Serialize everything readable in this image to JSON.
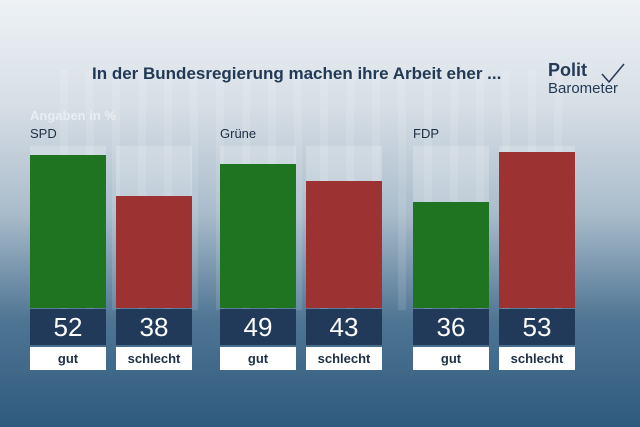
{
  "title": "In der Bundesregierung machen ihre Arbeit eher ...",
  "logo": {
    "line1": "Polit",
    "line2": "Barometer"
  },
  "note": "Angaben in %",
  "colors": {
    "gut": "#1e7420",
    "schlecht": "#9d3232",
    "value_box": "#223a5a",
    "text": "#223a56"
  },
  "chart_data": [
    {
      "type": "bar",
      "title": "SPD",
      "categories": [
        "gut",
        "schlecht"
      ],
      "values": [
        52,
        38
      ],
      "ylim": [
        0,
        55
      ]
    },
    {
      "type": "bar",
      "title": "Grüne",
      "categories": [
        "gut",
        "schlecht"
      ],
      "values": [
        49,
        43
      ],
      "ylim": [
        0,
        55
      ]
    },
    {
      "type": "bar",
      "title": "FDP",
      "categories": [
        "gut",
        "schlecht"
      ],
      "values": [
        36,
        53
      ],
      "ylim": [
        0,
        55
      ]
    }
  ]
}
